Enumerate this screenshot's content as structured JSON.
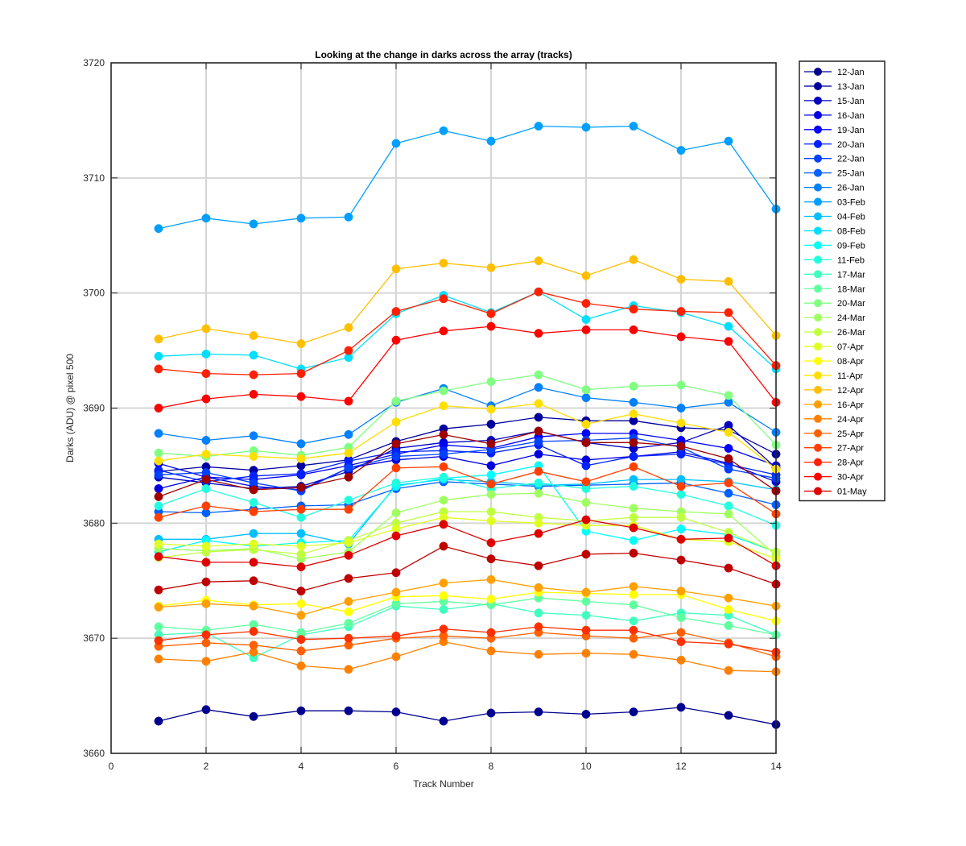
{
  "chart_data": {
    "type": "line",
    "title": "Looking at the change in darks across the array (tracks)",
    "xlabel": "Track Number",
    "ylabel": "Darks (ADU) @ pixel 500",
    "xlim": [
      0,
      14
    ],
    "ylim": [
      3660,
      3720
    ],
    "xticks": [
      0,
      2,
      4,
      6,
      8,
      10,
      12,
      14
    ],
    "yticks": [
      3660,
      3670,
      3680,
      3690,
      3700,
      3710,
      3720
    ],
    "grid": true,
    "legend_position": "outside-right",
    "x": [
      1,
      2,
      3,
      4,
      5,
      6,
      7,
      8,
      9,
      10,
      11,
      12,
      13,
      14
    ],
    "series": [
      {
        "name": "12-Jan",
        "color": "#00008F",
        "values": [
          3662.8,
          3663.8,
          3663.2,
          3663.7,
          3663.7,
          3663.6,
          3662.8,
          3663.5,
          3663.6,
          3663.4,
          3663.6,
          3664.0,
          3663.3,
          3662.5
        ]
      },
      {
        "name": "13-Jan",
        "color": "#00009F",
        "values": [
          3684.5,
          3684.9,
          3684.6,
          3685.0,
          3685.5,
          3687.1,
          3688.2,
          3688.6,
          3689.2,
          3688.9,
          3688.9,
          3688.3,
          3688.1,
          3686.0
        ]
      },
      {
        "name": "15-Jan",
        "color": "#0000BF",
        "values": [
          3684.0,
          3683.5,
          3683.0,
          3683.2,
          3684.5,
          3686.5,
          3687.0,
          3687.2,
          3688.0,
          3687.0,
          3686.5,
          3687.0,
          3688.5,
          3684.8
        ]
      },
      {
        "name": "16-Jan",
        "color": "#0000DF",
        "values": [
          3683.0,
          3684.0,
          3683.2,
          3682.9,
          3684.8,
          3685.5,
          3685.8,
          3685.0,
          3686.0,
          3685.5,
          3685.8,
          3686.2,
          3685.2,
          3683.6
        ]
      },
      {
        "name": "19-Jan",
        "color": "#0000FF",
        "values": [
          3685.2,
          3684.0,
          3683.8,
          3684.2,
          3685.0,
          3686.0,
          3686.8,
          3686.5,
          3687.5,
          3687.8,
          3687.8,
          3687.2,
          3686.5,
          3685.0
        ]
      },
      {
        "name": "20-Jan",
        "color": "#0020FF",
        "values": [
          3684.6,
          3683.6,
          3684.1,
          3684.3,
          3685.4,
          3686.2,
          3686.3,
          3686.1,
          3686.8,
          3685.0,
          3685.8,
          3686.0,
          3685.1,
          3684.2
        ]
      },
      {
        "name": "22-Jan",
        "color": "#0040FF",
        "values": [
          3684.2,
          3684.4,
          3683.5,
          3682.8,
          3684.8,
          3685.8,
          3686.0,
          3686.4,
          3687.1,
          3687.2,
          3687.4,
          3686.6,
          3684.7,
          3683.9
        ]
      },
      {
        "name": "25-Jan",
        "color": "#0060FF",
        "values": [
          3681.0,
          3680.9,
          3681.2,
          3681.5,
          3681.6,
          3683.0,
          3683.6,
          3683.4,
          3683.2,
          3683.3,
          3683.4,
          3683.5,
          3682.6,
          3681.6
        ]
      },
      {
        "name": "26-Jan",
        "color": "#0080FF",
        "values": [
          3687.8,
          3687.2,
          3687.6,
          3686.9,
          3687.7,
          3690.5,
          3691.7,
          3690.2,
          3691.8,
          3690.9,
          3690.5,
          3690.0,
          3690.5,
          3687.9
        ]
      },
      {
        "name": "03-Feb",
        "color": "#009FFF",
        "values": [
          3705.6,
          3706.5,
          3706.0,
          3706.5,
          3706.6,
          3713.0,
          3714.1,
          3713.2,
          3714.5,
          3714.4,
          3714.5,
          3712.4,
          3713.2,
          3707.3
        ]
      },
      {
        "name": "04-Feb",
        "color": "#00BFFF",
        "values": [
          3678.6,
          3678.6,
          3679.1,
          3679.1,
          3678.2,
          3683.3,
          3683.8,
          3683.6,
          3683.3,
          3683.4,
          3683.8,
          3683.8,
          3683.6,
          3682.9
        ]
      },
      {
        "name": "08-Feb",
        "color": "#00DFFF",
        "values": [
          3694.5,
          3694.7,
          3694.6,
          3693.4,
          3694.4,
          3698.2,
          3699.8,
          3698.3,
          3700.1,
          3697.7,
          3698.9,
          3698.3,
          3697.1,
          3693.4
        ]
      },
      {
        "name": "09-Feb",
        "color": "#00FFFF",
        "values": [
          3677.5,
          3678.5,
          3678.0,
          3678.3,
          3678.5,
          3683.2,
          3683.9,
          3684.2,
          3685.0,
          3679.3,
          3678.5,
          3679.5,
          3679.0,
          3677.5
        ]
      },
      {
        "name": "11-Feb",
        "color": "#20FFDF",
        "values": [
          3681.5,
          3683.0,
          3681.8,
          3680.5,
          3682.0,
          3683.5,
          3684.0,
          3683.0,
          3683.5,
          3683.0,
          3683.2,
          3682.5,
          3681.5,
          3679.8
        ]
      },
      {
        "name": "17-Mar",
        "color": "#40FFBF",
        "values": [
          3670.3,
          3670.5,
          3668.3,
          3670.3,
          3671.0,
          3672.8,
          3672.5,
          3673.0,
          3672.2,
          3672.0,
          3671.5,
          3672.2,
          3672.0,
          3670.3
        ]
      },
      {
        "name": "18-Mar",
        "color": "#60FF9F",
        "values": [
          3671.0,
          3670.7,
          3671.2,
          3670.5,
          3671.3,
          3673.0,
          3673.2,
          3672.9,
          3673.5,
          3673.2,
          3672.9,
          3671.8,
          3671.1,
          3670.3
        ]
      },
      {
        "name": "20-Mar",
        "color": "#80FF80",
        "values": [
          3686.1,
          3685.8,
          3686.3,
          3685.9,
          3686.6,
          3690.6,
          3691.5,
          3692.3,
          3692.9,
          3691.6,
          3691.9,
          3692.0,
          3691.1,
          3686.8
        ]
      },
      {
        "name": "24-Mar",
        "color": "#9FFF60",
        "values": [
          3677.8,
          3677.6,
          3677.8,
          3676.9,
          3677.5,
          3680.9,
          3682.0,
          3682.5,
          3682.6,
          3681.8,
          3681.3,
          3681.0,
          3680.8,
          3677.2
        ]
      },
      {
        "name": "26-Mar",
        "color": "#BFFF40",
        "values": [
          3677.0,
          3677.5,
          3677.7,
          3677.3,
          3678.5,
          3680.0,
          3681.0,
          3681.0,
          3680.5,
          3680.2,
          3680.5,
          3680.5,
          3679.2,
          3677.5
        ]
      },
      {
        "name": "07-Apr",
        "color": "#DFFF20",
        "values": [
          3678.2,
          3678.0,
          3678.2,
          3678.0,
          3678.3,
          3679.5,
          3680.5,
          3680.2,
          3680.0,
          3679.8,
          3679.8,
          3678.6,
          3678.4,
          3676.9
        ]
      },
      {
        "name": "08-Apr",
        "color": "#FFFF00",
        "values": [
          3672.8,
          3673.3,
          3672.9,
          3673.0,
          3672.3,
          3673.6,
          3673.7,
          3673.4,
          3674.0,
          3673.9,
          3673.8,
          3673.8,
          3672.5,
          3671.5
        ]
      },
      {
        "name": "11-Apr",
        "color": "#FFDF00",
        "values": [
          3685.4,
          3686.0,
          3685.8,
          3685.6,
          3686.1,
          3688.8,
          3690.2,
          3689.9,
          3690.4,
          3688.6,
          3689.5,
          3688.7,
          3687.9,
          3684.7
        ]
      },
      {
        "name": "12-Apr",
        "color": "#FFBF00",
        "values": [
          3696.0,
          3696.9,
          3696.3,
          3695.6,
          3697.0,
          3702.1,
          3702.6,
          3702.2,
          3702.8,
          3701.5,
          3702.9,
          3701.2,
          3701.0,
          3696.3
        ]
      },
      {
        "name": "16-Apr",
        "color": "#FF9F00",
        "values": [
          3672.7,
          3673.0,
          3672.8,
          3672.0,
          3673.2,
          3674.0,
          3674.8,
          3675.1,
          3674.4,
          3674.0,
          3674.5,
          3674.1,
          3673.5,
          3672.8
        ]
      },
      {
        "name": "24-Apr",
        "color": "#FF8000",
        "values": [
          3668.2,
          3668.0,
          3668.8,
          3667.6,
          3667.3,
          3668.4,
          3669.7,
          3668.9,
          3668.6,
          3668.7,
          3668.6,
          3668.1,
          3667.2,
          3667.1
        ]
      },
      {
        "name": "25-Apr",
        "color": "#FF6000",
        "values": [
          3669.3,
          3669.6,
          3669.4,
          3668.9,
          3669.4,
          3670.0,
          3670.2,
          3670.0,
          3670.5,
          3670.2,
          3670.0,
          3670.5,
          3669.6,
          3668.4
        ]
      },
      {
        "name": "27-Apr",
        "color": "#FF4000",
        "values": [
          3680.5,
          3681.5,
          3681.0,
          3681.2,
          3681.2,
          3684.8,
          3684.9,
          3683.4,
          3684.5,
          3683.6,
          3684.9,
          3683.2,
          3683.5,
          3680.8
        ]
      },
      {
        "name": "28-Apr",
        "color": "#FF2000",
        "values": [
          3693.4,
          3693.0,
          3692.9,
          3693.0,
          3695.0,
          3698.4,
          3699.5,
          3698.2,
          3700.1,
          3699.1,
          3698.6,
          3698.4,
          3698.3,
          3693.7
        ]
      },
      {
        "name": "30-Apr",
        "color": "#FF0000",
        "values": [
          3690.0,
          3690.8,
          3691.2,
          3691.0,
          3690.6,
          3695.9,
          3696.7,
          3697.1,
          3696.5,
          3696.8,
          3696.8,
          3696.2,
          3695.8,
          3690.5
        ]
      },
      {
        "name": "01-May",
        "color": "#DF0000",
        "values": [
          3677.1,
          3676.6,
          3676.6,
          3676.2,
          3677.2,
          3678.9,
          3679.9,
          3678.3,
          3679.1,
          3680.3,
          3679.6,
          3678.6,
          3678.7,
          3676.3
        ]
      },
      {
        "name": "",
        "color": "#BF0000",
        "values": [
          3674.2,
          3674.9,
          3675.0,
          3674.1,
          3675.2,
          3675.7,
          3678.0,
          3676.9,
          3676.3,
          3677.3,
          3677.4,
          3676.8,
          3676.1,
          3674.7
        ]
      },
      {
        "name": "",
        "color": "#9F0000",
        "values": [
          3682.3,
          3683.8,
          3682.9,
          3683.1,
          3684.0,
          3686.9,
          3687.7,
          3686.9,
          3688.0,
          3687.0,
          3687.0,
          3686.7,
          3685.6,
          3682.8
        ]
      },
      {
        "name": "",
        "color": "#FF3000",
        "values": [
          3669.8,
          3670.3,
          3670.6,
          3669.9,
          3670.0,
          3670.2,
          3670.8,
          3670.5,
          3671.0,
          3670.7,
          3670.7,
          3669.7,
          3669.5,
          3668.8
        ]
      }
    ],
    "legend_entries": [
      "12-Jan",
      "13-Jan",
      "15-Jan",
      "16-Jan",
      "19-Jan",
      "20-Jan",
      "22-Jan",
      "25-Jan",
      "26-Jan",
      "03-Feb",
      "04-Feb",
      "08-Feb",
      "09-Feb",
      "11-Feb",
      "17-Mar",
      "18-Mar",
      "20-Mar",
      "24-Mar",
      "26-Mar",
      "07-Apr",
      "08-Apr",
      "11-Apr",
      "12-Apr",
      "16-Apr",
      "24-Apr",
      "25-Apr",
      "27-Apr",
      "28-Apr",
      "30-Apr",
      "01-May"
    ]
  }
}
